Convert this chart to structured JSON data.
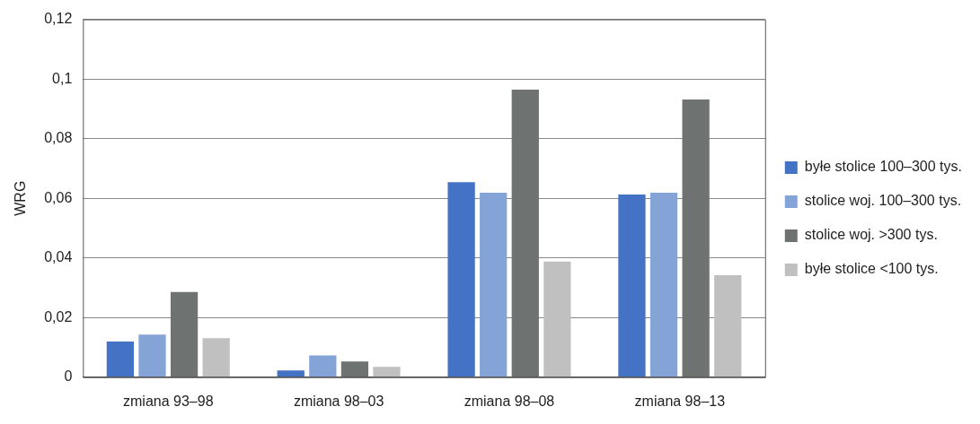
{
  "chart_data": {
    "type": "bar",
    "ylabel": "WRG",
    "categories": [
      "zmiana 93–98",
      "zmiana 98–03",
      "zmiana 98–08",
      "zmiana 98–13"
    ],
    "series": [
      {
        "name": "byłe stolice 100–300 tys.",
        "color": "#4472c4",
        "values": [
          0.012,
          0.0023,
          0.0654,
          0.0613
        ]
      },
      {
        "name": "stolice woj. 100–300 tys.",
        "color": "#84a4d8",
        "values": [
          0.0143,
          0.0073,
          0.0619,
          0.0619
        ]
      },
      {
        "name": "stolice woj. >300 tys.",
        "color": "#6e7372",
        "values": [
          0.0286,
          0.0053,
          0.0964,
          0.0931
        ]
      },
      {
        "name": "byłe stolice <100 tys.",
        "color": "#c0c0c0",
        "values": [
          0.0131,
          0.0035,
          0.0388,
          0.0342
        ]
      }
    ],
    "ylim": [
      0,
      0.12
    ],
    "yticks": [
      0,
      {
        "value": 0.02,
        "label": "0,02"
      },
      {
        "value": 0.04,
        "label": "0,04"
      },
      {
        "value": 0.06,
        "label": "0,06"
      },
      {
        "value": 0.08,
        "label": "0,08"
      },
      {
        "value": 0.1,
        "label": "0,1"
      },
      {
        "value": 0.12,
        "label": "0,12"
      }
    ],
    "grid": "y",
    "legend": "right"
  }
}
